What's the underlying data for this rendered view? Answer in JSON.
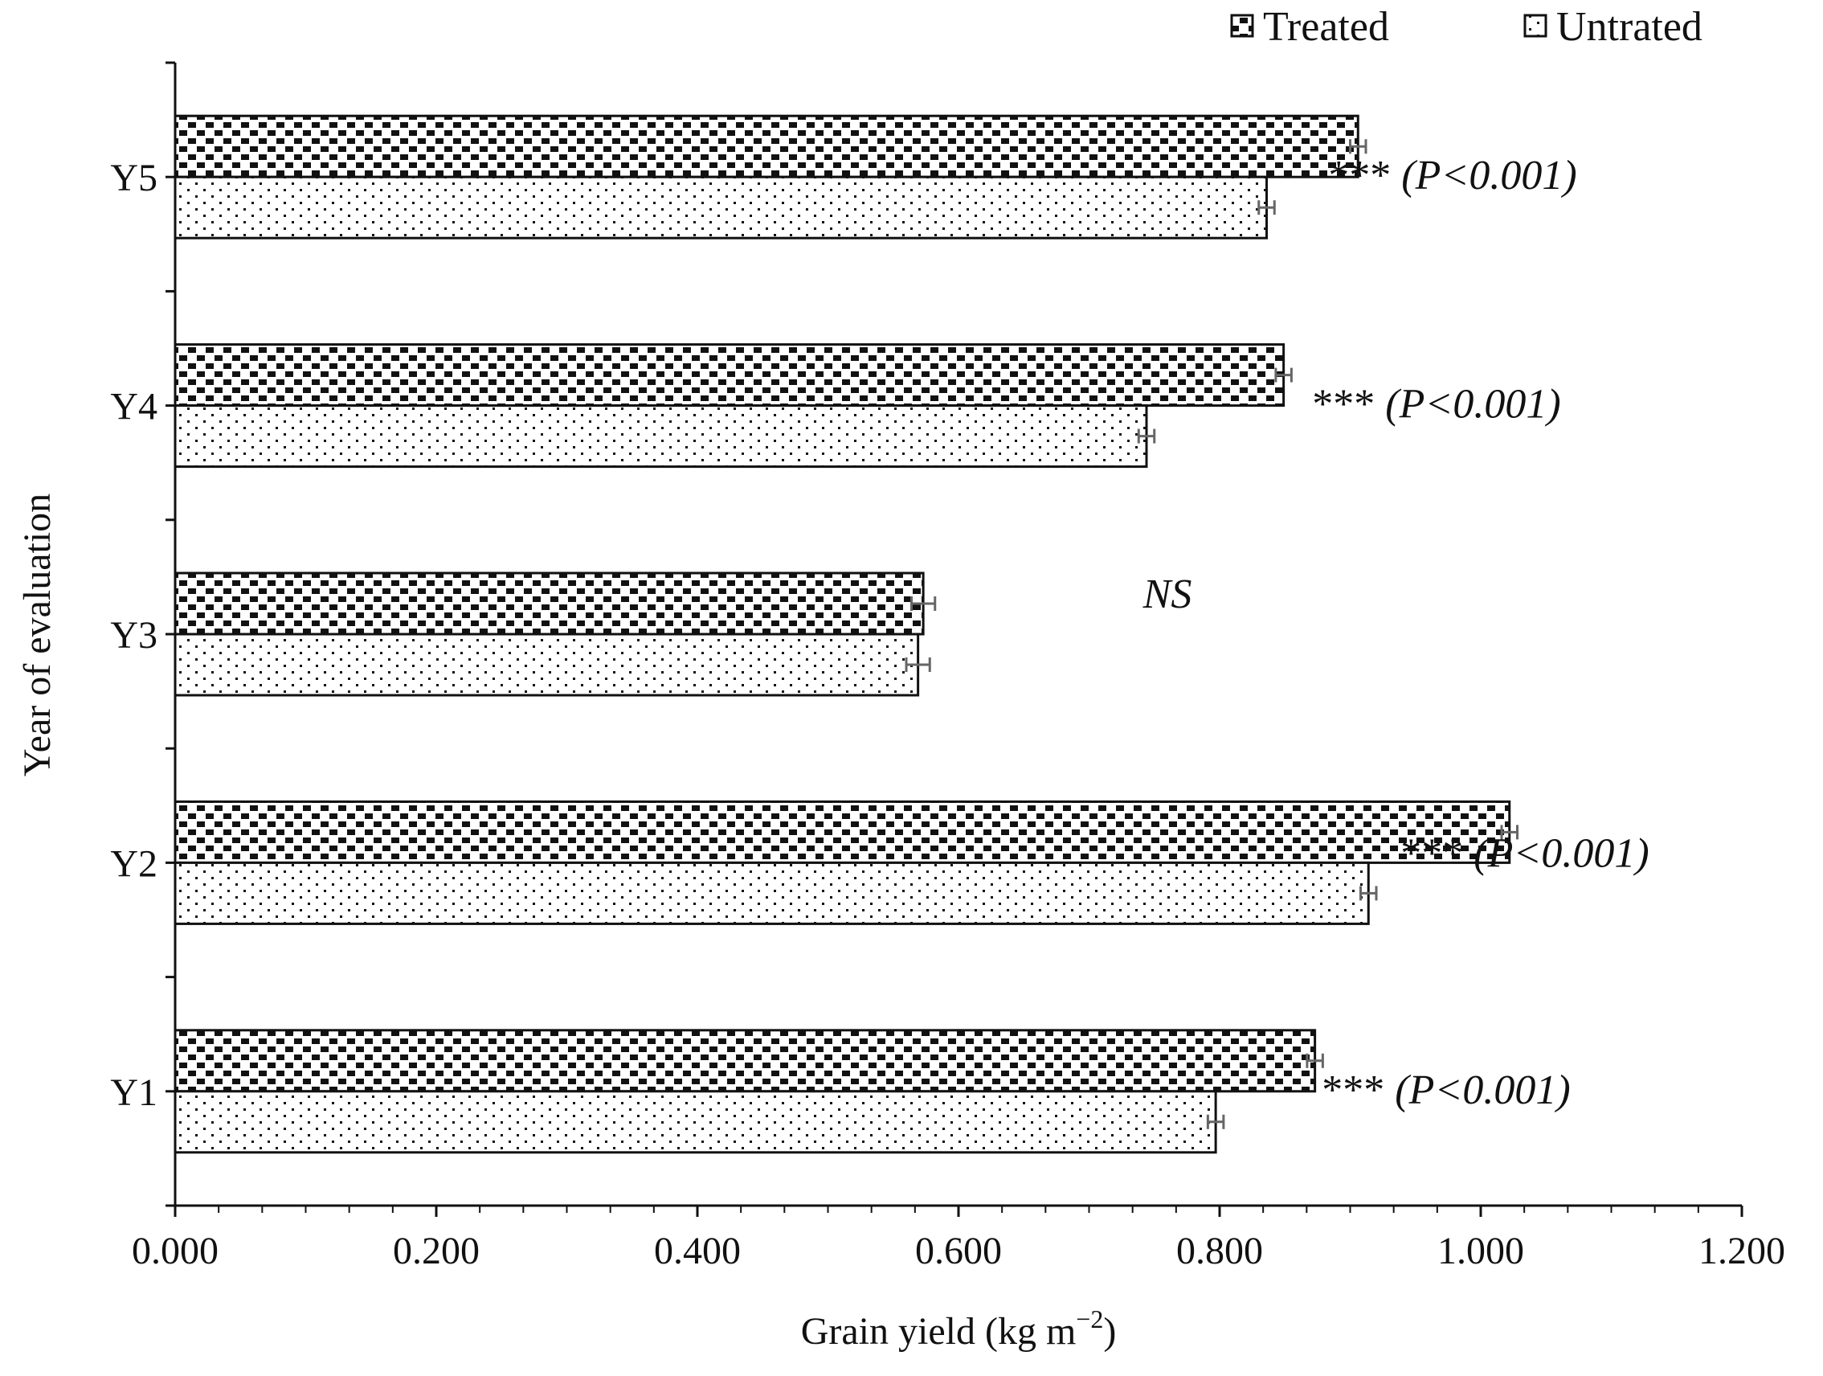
{
  "chart_data": {
    "type": "bar",
    "orientation": "horizontal",
    "categories": [
      "Y1",
      "Y2",
      "Y3",
      "Y4",
      "Y5"
    ],
    "series": [
      {
        "name": "Treated",
        "values": [
          0.873,
          1.022,
          0.573,
          0.849,
          0.906
        ],
        "errors": [
          0.006,
          0.006,
          0.009,
          0.006,
          0.006
        ]
      },
      {
        "name": "Untrated",
        "values": [
          0.797,
          0.914,
          0.569,
          0.744,
          0.836
        ],
        "errors": [
          0.006,
          0.006,
          0.009,
          0.006,
          0.006
        ]
      }
    ],
    "xlabel": "Grain yield (kg m",
    "xlabel_sup": "−2",
    "xlabel_close": ")",
    "ylabel": "Year of evaluation",
    "xlim": [
      0,
      1.2
    ],
    "xticks": [
      "0.000",
      "0.200",
      "0.400",
      "0.600",
      "0.800",
      "1.000",
      "1.200"
    ],
    "annotations": [
      {
        "category": "Y1",
        "stars": "***",
        "p": "(P<0.001)"
      },
      {
        "category": "Y2",
        "stars": "***",
        "p": "(P<0.001)"
      },
      {
        "category": "Y3",
        "stars": "",
        "p": "NS"
      },
      {
        "category": "Y4",
        "stars": "***",
        "p": "(P<0.001)"
      },
      {
        "category": "Y5",
        "stars": "***",
        "p": "(P<0.001)"
      }
    ],
    "legend_position": "top-right",
    "grid": false
  },
  "colors": {
    "ink": "#111111",
    "error_bar": "#666666",
    "background": "#ffffff"
  }
}
